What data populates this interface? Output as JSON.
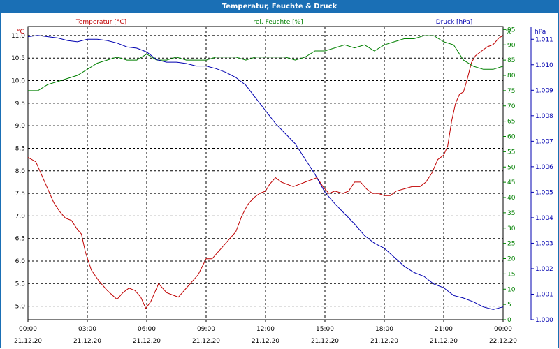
{
  "window": {
    "title": "Temperatur, Feuchte & Druck"
  },
  "chart_data": {
    "type": "line",
    "title": "Temperatur, Feuchte & Druck",
    "grid": true,
    "x_labels": [
      {
        "time": "00:00",
        "date": "21.12.20"
      },
      {
        "time": "03:00",
        "date": "21.12.20"
      },
      {
        "time": "06:00",
        "date": "21.12.20"
      },
      {
        "time": "09:00",
        "date": "21.12.20"
      },
      {
        "time": "12:00",
        "date": "21.12.20"
      },
      {
        "time": "15:00",
        "date": "21.12.20"
      },
      {
        "time": "18:00",
        "date": "21.12.20"
      },
      {
        "time": "21:00",
        "date": "21.12.20"
      },
      {
        "time": "00:00",
        "date": "22.12.20"
      }
    ],
    "xlim_hours": [
      0,
      24
    ],
    "axes": {
      "temperature": {
        "label": "Temperatur [°C]",
        "unit": "°C",
        "color": "#c00000",
        "ylim": [
          4.7,
          11.2
        ],
        "ticks": [
          "5.0",
          "5.5",
          "6.0",
          "6.5",
          "7.0",
          "7.5",
          "8.0",
          "8.5",
          "9.0",
          "9.5",
          "10.0",
          "10.5",
          "11.0"
        ]
      },
      "humidity": {
        "label": "rel. Feuchte [%]",
        "unit": "%",
        "color": "#008000",
        "ylim": [
          0,
          96
        ],
        "ticks": [
          "0",
          "5",
          "10",
          "15",
          "20",
          "25",
          "30",
          "35",
          "40",
          "45",
          "50",
          "55",
          "60",
          "65",
          "70",
          "75",
          "80",
          "85",
          "90",
          "95"
        ]
      },
      "pressure": {
        "label": "Druck [hPa]",
        "unit": "hPa",
        "color": "#0000b0",
        "ylim": [
          1000.0,
          1011.5
        ],
        "ticks": [
          "1.000",
          "1.001",
          "1.002",
          "1.003",
          "1.004",
          "1.005",
          "1.006",
          "1.007",
          "1.008",
          "1.009",
          "1.010",
          "1.011"
        ]
      }
    },
    "series": [
      {
        "name": "Temperatur [°C]",
        "axis": "temperature",
        "color": "#c00000",
        "points": [
          [
            0,
            8.3
          ],
          [
            0.4,
            8.2
          ],
          [
            0.7,
            7.9
          ],
          [
            1.0,
            7.6
          ],
          [
            1.3,
            7.3
          ],
          [
            1.6,
            7.1
          ],
          [
            1.9,
            6.95
          ],
          [
            2.2,
            6.9
          ],
          [
            2.5,
            6.7
          ],
          [
            2.7,
            6.6
          ],
          [
            2.9,
            6.2
          ],
          [
            3.2,
            5.8
          ],
          [
            3.6,
            5.55
          ],
          [
            4.0,
            5.35
          ],
          [
            4.5,
            5.15
          ],
          [
            4.8,
            5.3
          ],
          [
            5.1,
            5.4
          ],
          [
            5.4,
            5.35
          ],
          [
            5.7,
            5.2
          ],
          [
            5.95,
            4.95
          ],
          [
            6.2,
            5.1
          ],
          [
            6.6,
            5.5
          ],
          [
            7.0,
            5.3
          ],
          [
            7.3,
            5.25
          ],
          [
            7.6,
            5.2
          ],
          [
            7.9,
            5.35
          ],
          [
            8.2,
            5.5
          ],
          [
            8.6,
            5.7
          ],
          [
            9.0,
            6.05
          ],
          [
            9.3,
            6.05
          ],
          [
            9.6,
            6.2
          ],
          [
            9.9,
            6.35
          ],
          [
            10.2,
            6.5
          ],
          [
            10.5,
            6.65
          ],
          [
            10.8,
            7.0
          ],
          [
            11.1,
            7.25
          ],
          [
            11.4,
            7.4
          ],
          [
            11.7,
            7.5
          ],
          [
            12.0,
            7.55
          ],
          [
            12.2,
            7.7
          ],
          [
            12.5,
            7.85
          ],
          [
            12.8,
            7.75
          ],
          [
            13.1,
            7.7
          ],
          [
            13.4,
            7.65
          ],
          [
            13.7,
            7.7
          ],
          [
            14.0,
            7.75
          ],
          [
            14.3,
            7.8
          ],
          [
            14.6,
            7.85
          ],
          [
            14.9,
            7.65
          ],
          [
            15.2,
            7.5
          ],
          [
            15.5,
            7.55
          ],
          [
            15.9,
            7.5
          ],
          [
            16.2,
            7.55
          ],
          [
            16.5,
            7.75
          ],
          [
            16.8,
            7.75
          ],
          [
            17.1,
            7.6
          ],
          [
            17.4,
            7.5
          ],
          [
            17.7,
            7.5
          ],
          [
            18.0,
            7.45
          ],
          [
            18.3,
            7.45
          ],
          [
            18.6,
            7.55
          ],
          [
            19.0,
            7.6
          ],
          [
            19.4,
            7.65
          ],
          [
            19.8,
            7.65
          ],
          [
            20.1,
            7.75
          ],
          [
            20.4,
            7.95
          ],
          [
            20.7,
            8.25
          ],
          [
            21.0,
            8.35
          ],
          [
            21.2,
            8.55
          ],
          [
            21.4,
            9.1
          ],
          [
            21.6,
            9.5
          ],
          [
            21.8,
            9.7
          ],
          [
            22.0,
            9.75
          ],
          [
            22.2,
            10.05
          ],
          [
            22.4,
            10.4
          ],
          [
            22.6,
            10.55
          ],
          [
            22.9,
            10.65
          ],
          [
            23.2,
            10.75
          ],
          [
            23.5,
            10.8
          ],
          [
            23.8,
            10.95
          ],
          [
            24.0,
            11.0
          ]
        ]
      },
      {
        "name": "rel. Feuchte [%]",
        "axis": "humidity",
        "color": "#008000",
        "points": [
          [
            0,
            75
          ],
          [
            0.5,
            75
          ],
          [
            1.0,
            77
          ],
          [
            1.5,
            78
          ],
          [
            2.0,
            79
          ],
          [
            2.5,
            80
          ],
          [
            3.0,
            82
          ],
          [
            3.5,
            84
          ],
          [
            4.0,
            85
          ],
          [
            4.5,
            86
          ],
          [
            5.0,
            85
          ],
          [
            5.5,
            85
          ],
          [
            6.0,
            87
          ],
          [
            6.5,
            85
          ],
          [
            7.0,
            85
          ],
          [
            7.5,
            86
          ],
          [
            8.0,
            85
          ],
          [
            8.5,
            85
          ],
          [
            9.0,
            85
          ],
          [
            9.5,
            86
          ],
          [
            10.0,
            86
          ],
          [
            10.5,
            86
          ],
          [
            11.0,
            85
          ],
          [
            11.5,
            86
          ],
          [
            12.0,
            86
          ],
          [
            12.5,
            86
          ],
          [
            13.0,
            86
          ],
          [
            13.5,
            85
          ],
          [
            14.0,
            86
          ],
          [
            14.5,
            88
          ],
          [
            15.0,
            88
          ],
          [
            15.5,
            89
          ],
          [
            16.0,
            90
          ],
          [
            16.5,
            89
          ],
          [
            17.0,
            90
          ],
          [
            17.5,
            88
          ],
          [
            18.0,
            90
          ],
          [
            18.5,
            91
          ],
          [
            19.0,
            92
          ],
          [
            19.5,
            92
          ],
          [
            20.0,
            93
          ],
          [
            20.5,
            93
          ],
          [
            21.0,
            91
          ],
          [
            21.5,
            90
          ],
          [
            22.0,
            85
          ],
          [
            22.5,
            83
          ],
          [
            23.0,
            82
          ],
          [
            23.5,
            82
          ],
          [
            24.0,
            83
          ]
        ]
      },
      {
        "name": "Druck [hPa]",
        "axis": "pressure",
        "color": "#0000b0",
        "points": [
          [
            0,
            1011.1
          ],
          [
            0.5,
            1011.15
          ],
          [
            1.0,
            1011.1
          ],
          [
            1.5,
            1011.05
          ],
          [
            2.0,
            1010.95
          ],
          [
            2.5,
            1010.9
          ],
          [
            3.0,
            1011.0
          ],
          [
            3.5,
            1011.0
          ],
          [
            4.0,
            1010.95
          ],
          [
            4.5,
            1010.85
          ],
          [
            5.0,
            1010.7
          ],
          [
            5.5,
            1010.65
          ],
          [
            6.0,
            1010.5
          ],
          [
            6.5,
            1010.2
          ],
          [
            7.0,
            1010.1
          ],
          [
            7.5,
            1010.1
          ],
          [
            8.0,
            1010.05
          ],
          [
            8.5,
            1009.95
          ],
          [
            9.0,
            1009.95
          ],
          [
            9.5,
            1009.85
          ],
          [
            10.0,
            1009.7
          ],
          [
            10.5,
            1009.5
          ],
          [
            11.0,
            1009.2
          ],
          [
            11.5,
            1008.7
          ],
          [
            12.0,
            1008.2
          ],
          [
            12.5,
            1007.7
          ],
          [
            13.0,
            1007.3
          ],
          [
            13.5,
            1006.9
          ],
          [
            14.0,
            1006.3
          ],
          [
            14.5,
            1005.7
          ],
          [
            15.0,
            1005.0
          ],
          [
            15.5,
            1004.55
          ],
          [
            16.0,
            1004.15
          ],
          [
            16.5,
            1003.75
          ],
          [
            17.0,
            1003.3
          ],
          [
            17.5,
            1003.0
          ],
          [
            18.0,
            1002.8
          ],
          [
            18.5,
            1002.45
          ],
          [
            19.0,
            1002.1
          ],
          [
            19.5,
            1001.85
          ],
          [
            20.0,
            1001.7
          ],
          [
            20.5,
            1001.4
          ],
          [
            21.0,
            1001.25
          ],
          [
            21.5,
            1000.95
          ],
          [
            22.0,
            1000.85
          ],
          [
            22.5,
            1000.7
          ],
          [
            23.0,
            1000.5
          ],
          [
            23.5,
            1000.4
          ],
          [
            24.0,
            1000.5
          ]
        ]
      }
    ]
  }
}
